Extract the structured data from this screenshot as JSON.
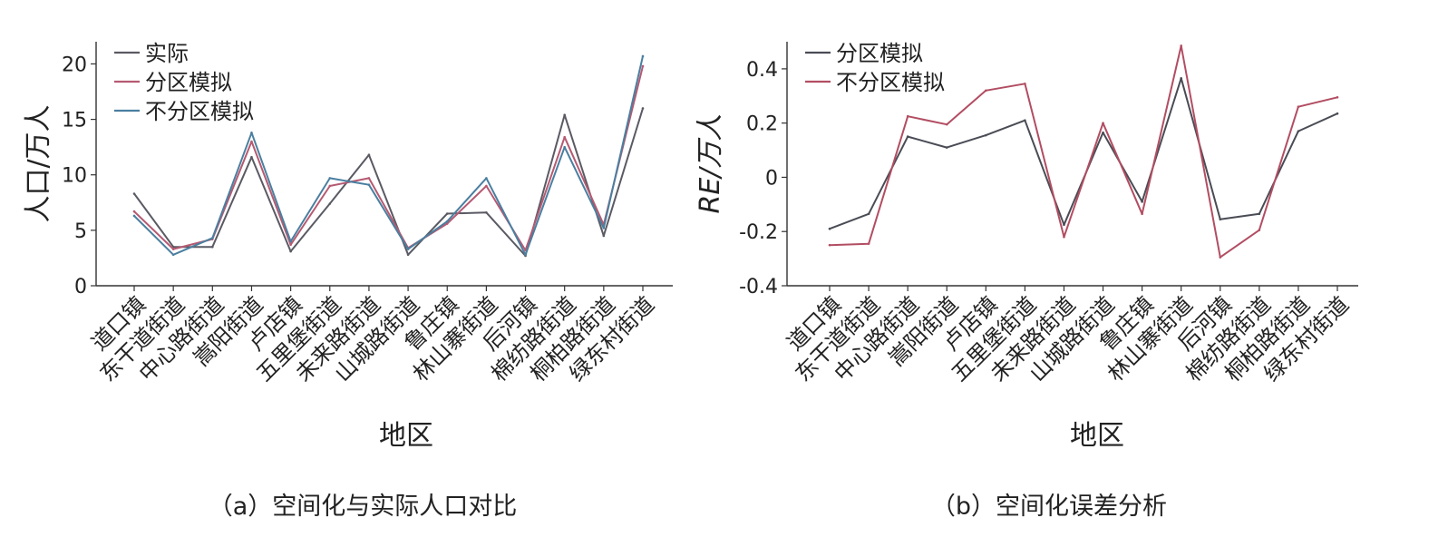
{
  "chart_data": [
    {
      "type": "line",
      "categories": [
        "道口镇",
        "东干道街道",
        "中心路街道",
        "嵩阳街道",
        "卢店镇",
        "五里堡街道",
        "未来路街道",
        "山城路街道",
        "鲁庄镇",
        "林山寨街道",
        "后河镇",
        "棉纺路街道",
        "桐柏路街道",
        "绿东村街道"
      ],
      "series": [
        {
          "name": "实际",
          "color": "#5a5a64",
          "values": [
            8.3,
            3.5,
            3.5,
            11.6,
            3.1,
            7.4,
            11.8,
            2.8,
            6.5,
            6.6,
            2.7,
            15.4,
            4.5,
            16.0
          ]
        },
        {
          "name": "分区模拟",
          "color": "#b55a72",
          "values": [
            6.7,
            3.3,
            4.2,
            13.0,
            3.7,
            9.0,
            9.7,
            3.4,
            5.6,
            9.0,
            3.2,
            13.4,
            5.5,
            19.8
          ]
        },
        {
          "name": "不分区模拟",
          "color": "#4a7fa0",
          "values": [
            6.3,
            2.8,
            4.3,
            13.8,
            4.0,
            9.7,
            9.1,
            3.3,
            5.8,
            9.7,
            2.8,
            12.5,
            5.2,
            20.7
          ]
        }
      ],
      "xlabel": "地区",
      "ylabel": "人口/万人",
      "ylim": [
        0,
        22
      ],
      "yticks": [
        "0",
        "5",
        "10",
        "15",
        "20"
      ],
      "legend_position": "top-left",
      "grid": false,
      "caption": "（a）空间化与实际人口对比"
    },
    {
      "type": "line",
      "categories": [
        "道口镇",
        "东干道街道",
        "中心路街道",
        "嵩阳街道",
        "卢店镇",
        "五里堡街道",
        "未来路街道",
        "山城路街道",
        "鲁庄镇",
        "林山寨街道",
        "后河镇",
        "棉纺路街道",
        "桐柏路街道",
        "绿东村街道"
      ],
      "series": [
        {
          "name": "分区模拟",
          "color": "#4a4c55",
          "values": [
            -0.19,
            -0.135,
            0.15,
            0.11,
            0.155,
            0.21,
            -0.175,
            0.165,
            -0.09,
            0.365,
            -0.155,
            -0.135,
            0.17,
            0.235
          ]
        },
        {
          "name": "不分区模拟",
          "color": "#b24d62",
          "values": [
            -0.25,
            -0.245,
            0.225,
            0.195,
            0.32,
            0.345,
            -0.22,
            0.2,
            -0.135,
            0.485,
            -0.295,
            -0.195,
            0.26,
            0.295
          ]
        }
      ],
      "xlabel": "地区",
      "ylabel": "RE/万人",
      "ylim": [
        -0.4,
        0.5
      ],
      "yticks": [
        "-0.4",
        "-0.2",
        "0",
        "0.2",
        "0.4"
      ],
      "legend_position": "top-left",
      "grid": false,
      "caption": "（b）空间化误差分析"
    }
  ]
}
